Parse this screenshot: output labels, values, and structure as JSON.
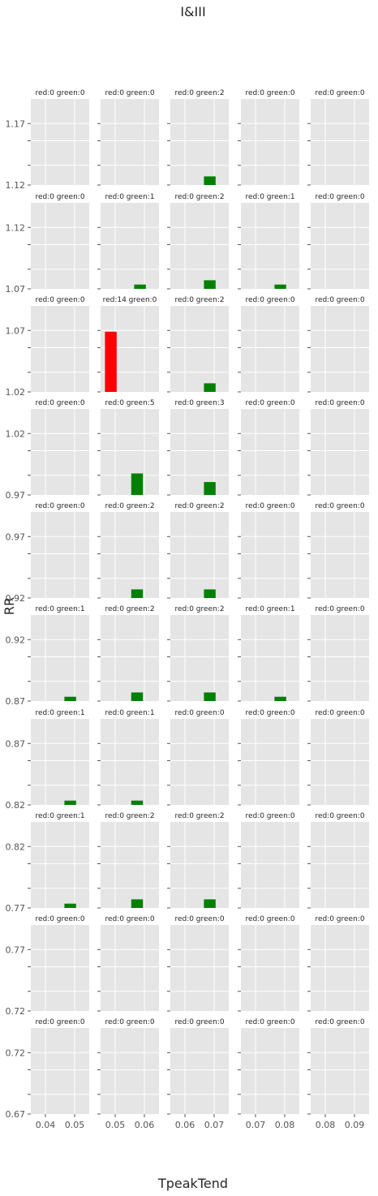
{
  "chart_data": {
    "type": "bar",
    "title": "I&III",
    "xlabel": "TpeakTend",
    "ylabel": "RR",
    "grid": true,
    "colors": {
      "red": "#ff0000",
      "green": "#008000",
      "panel_bg": "#e5e5e5",
      "grid": "#ffffff"
    },
    "columns": [
      {
        "xlim": [
          0.035,
          0.055
        ],
        "xticks": [
          0.04,
          0.05
        ],
        "xtick_labels": [
          "0.04",
          "0.05"
        ]
      },
      {
        "xlim": [
          0.045,
          0.065
        ],
        "xticks": [
          0.05,
          0.06
        ],
        "xtick_labels": [
          "0.05",
          "0.06"
        ]
      },
      {
        "xlim": [
          0.055,
          0.075
        ],
        "xticks": [
          0.06,
          0.07
        ],
        "xtick_labels": [
          "0.06",
          "0.07"
        ]
      },
      {
        "xlim": [
          0.065,
          0.085
        ],
        "xticks": [
          0.07,
          0.08
        ],
        "xtick_labels": [
          "0.07",
          "0.08"
        ]
      },
      {
        "xlim": [
          0.075,
          0.095
        ],
        "xticks": [
          0.08,
          0.09
        ],
        "xtick_labels": [
          "0.08",
          "0.09"
        ]
      }
    ],
    "rows": [
      {
        "ylim": [
          1.12,
          1.19
        ],
        "ytick_labels": [
          "1.17",
          "1.12"
        ],
        "titles": [
          "red:0 green:0",
          "red:0 green:0",
          "red:0 green:2",
          "red:0 green:0",
          "red:0 green:0"
        ]
      },
      {
        "ylim": [
          1.07,
          1.14
        ],
        "ytick_labels": [
          "1.12",
          "1.07"
        ],
        "titles": [
          "red:0 green:0",
          "red:0 green:1",
          "red:0 green:2",
          "red:0 green:1",
          "red:0 green:0"
        ]
      },
      {
        "ylim": [
          1.02,
          1.09
        ],
        "ytick_labels": [
          "1.07",
          "1.02"
        ],
        "titles": [
          "red:0 green:0",
          "red:14 green:0",
          "red:0 green:2",
          "red:0 green:0",
          "red:0 green:0"
        ]
      },
      {
        "ylim": [
          0.97,
          1.04
        ],
        "ytick_labels": [
          "1.02",
          "0.97"
        ],
        "titles": [
          "red:0 green:0",
          "red:0 green:5",
          "red:0 green:3",
          "red:0 green:0",
          "red:0 green:0"
        ]
      },
      {
        "ylim": [
          0.92,
          0.99
        ],
        "ytick_labels": [
          "0.97",
          "0.92"
        ],
        "titles": [
          "red:0 green:0",
          "red:0 green:2",
          "red:0 green:2",
          "red:0 green:0",
          "red:0 green:0"
        ]
      },
      {
        "ylim": [
          0.87,
          0.94
        ],
        "ytick_labels": [
          "0.92",
          "0.87"
        ],
        "titles": [
          "red:0 green:1",
          "red:0 green:2",
          "red:0 green:2",
          "red:0 green:1",
          "red:0 green:0"
        ]
      },
      {
        "ylim": [
          0.82,
          0.89
        ],
        "ytick_labels": [
          "0.87",
          "0.82"
        ],
        "titles": [
          "red:0 green:1",
          "red:0 green:1",
          "red:0 green:0",
          "red:0 green:0",
          "red:0 green:0"
        ]
      },
      {
        "ylim": [
          0.77,
          0.84
        ],
        "ytick_labels": [
          "0.82",
          "0.77"
        ],
        "titles": [
          "red:0 green:1",
          "red:0 green:2",
          "red:0 green:2",
          "red:0 green:0",
          "red:0 green:0"
        ]
      },
      {
        "ylim": [
          0.72,
          0.79
        ],
        "ytick_labels": [
          "0.77",
          "0.72"
        ],
        "titles": [
          "red:0 green:0",
          "red:0 green:0",
          "red:0 green:0",
          "red:0 green:0",
          "red:0 green:0"
        ]
      },
      {
        "ylim": [
          0.67,
          0.74
        ],
        "ytick_labels": [
          "0.72",
          "0.67"
        ],
        "titles": [
          "red:0 green:0",
          "red:0 green:0",
          "red:0 green:0",
          "red:0 green:0",
          "red:0 green:0"
        ]
      }
    ],
    "bars": [
      {
        "row": 0,
        "col": 2,
        "series": "green",
        "x": [
          0.0665,
          0.0705
        ],
        "y": [
          1.12,
          1.127
        ]
      },
      {
        "row": 1,
        "col": 1,
        "series": "green",
        "x": [
          0.0565,
          0.0605
        ],
        "y": [
          1.07,
          1.0735
        ]
      },
      {
        "row": 1,
        "col": 2,
        "series": "green",
        "x": [
          0.0665,
          0.0705
        ],
        "y": [
          1.07,
          1.077
        ]
      },
      {
        "row": 1,
        "col": 3,
        "series": "green",
        "x": [
          0.0765,
          0.0805
        ],
        "y": [
          1.07,
          1.0735
        ]
      },
      {
        "row": 2,
        "col": 1,
        "series": "red",
        "x": [
          0.0465,
          0.0505
        ],
        "y": [
          1.02,
          1.069
        ]
      },
      {
        "row": 2,
        "col": 2,
        "series": "green",
        "x": [
          0.0665,
          0.0705
        ],
        "y": [
          1.02,
          1.027
        ]
      },
      {
        "row": 3,
        "col": 1,
        "series": "green",
        "x": [
          0.0555,
          0.0595
        ],
        "y": [
          0.97,
          0.9875
        ]
      },
      {
        "row": 3,
        "col": 2,
        "series": "green",
        "x": [
          0.0665,
          0.0705
        ],
        "y": [
          0.97,
          0.9805
        ]
      },
      {
        "row": 4,
        "col": 1,
        "series": "green",
        "x": [
          0.0555,
          0.0595
        ],
        "y": [
          0.92,
          0.927
        ]
      },
      {
        "row": 4,
        "col": 2,
        "series": "green",
        "x": [
          0.0665,
          0.0705
        ],
        "y": [
          0.92,
          0.927
        ]
      },
      {
        "row": 5,
        "col": 0,
        "series": "green",
        "x": [
          0.0465,
          0.0505
        ],
        "y": [
          0.87,
          0.8735
        ]
      },
      {
        "row": 5,
        "col": 1,
        "series": "green",
        "x": [
          0.0555,
          0.0595
        ],
        "y": [
          0.87,
          0.877
        ]
      },
      {
        "row": 5,
        "col": 2,
        "series": "green",
        "x": [
          0.0665,
          0.0705
        ],
        "y": [
          0.87,
          0.877
        ]
      },
      {
        "row": 5,
        "col": 3,
        "series": "green",
        "x": [
          0.0765,
          0.0805
        ],
        "y": [
          0.87,
          0.8735
        ]
      },
      {
        "row": 6,
        "col": 0,
        "series": "green",
        "x": [
          0.0465,
          0.0505
        ],
        "y": [
          0.82,
          0.8235
        ]
      },
      {
        "row": 6,
        "col": 1,
        "series": "green",
        "x": [
          0.0555,
          0.0595
        ],
        "y": [
          0.82,
          0.8235
        ]
      },
      {
        "row": 7,
        "col": 0,
        "series": "green",
        "x": [
          0.0465,
          0.0505
        ],
        "y": [
          0.77,
          0.7735
        ]
      },
      {
        "row": 7,
        "col": 1,
        "series": "green",
        "x": [
          0.0555,
          0.0595
        ],
        "y": [
          0.77,
          0.777
        ]
      },
      {
        "row": 7,
        "col": 2,
        "series": "green",
        "x": [
          0.0665,
          0.0705
        ],
        "y": [
          0.77,
          0.777
        ]
      }
    ]
  }
}
